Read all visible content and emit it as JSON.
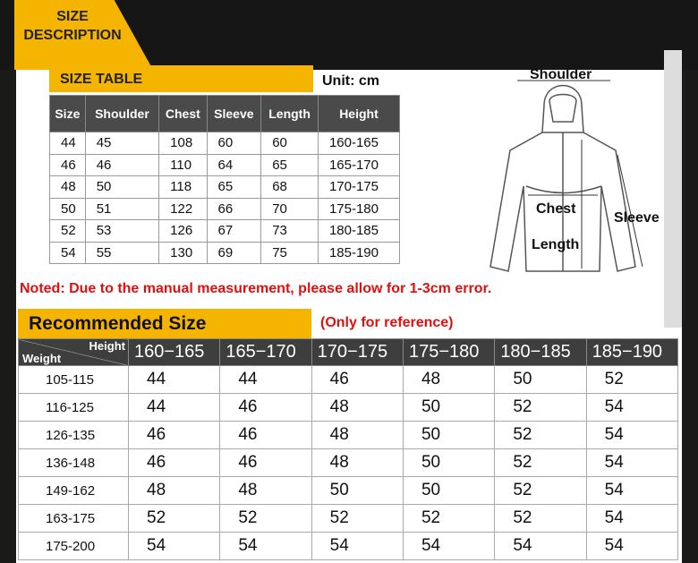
{
  "header": {
    "line1": "SIZE",
    "line2": "DESCRIPTION"
  },
  "size_table": {
    "title": "SIZE TABLE",
    "unit": "Unit: cm",
    "columns": [
      "Size",
      "Shoulder",
      "Chest",
      "Sleeve",
      "Length",
      "Height"
    ],
    "rows": [
      [
        "44",
        "45",
        "108",
        "60",
        "60",
        "160-165"
      ],
      [
        "46",
        "46",
        "110",
        "64",
        "65",
        "165-170"
      ],
      [
        "48",
        "50",
        "118",
        "65",
        "68",
        "170-175"
      ],
      [
        "50",
        "51",
        "122",
        "66",
        "70",
        "175-180"
      ],
      [
        "52",
        "53",
        "126",
        "67",
        "73",
        "180-185"
      ],
      [
        "54",
        "55",
        "130",
        "69",
        "75",
        "185-190"
      ]
    ]
  },
  "diagram": {
    "shoulder": "Shoulder",
    "chest": "Chest",
    "sleeve": "Sleeve",
    "length": "Length"
  },
  "note": "Noted: Due to the manual measurement, please allow for 1-3cm error.",
  "recommended": {
    "title": "Recommended Size",
    "reference": "(Only for reference)",
    "corner_height": "Height",
    "corner_weight": "Weight",
    "heights": [
      "160−165",
      "165−170",
      "170−175",
      "175−180",
      "180−185",
      "185−190"
    ],
    "rows": [
      {
        "weight": "105-115",
        "sizes": [
          "44",
          "44",
          "46",
          "48",
          "50",
          "52"
        ]
      },
      {
        "weight": "116-125",
        "sizes": [
          "44",
          "46",
          "48",
          "50",
          "52",
          "54"
        ]
      },
      {
        "weight": "126-135",
        "sizes": [
          "46",
          "46",
          "48",
          "50",
          "52",
          "54"
        ]
      },
      {
        "weight": "136-148",
        "sizes": [
          "46",
          "46",
          "48",
          "50",
          "52",
          "54"
        ]
      },
      {
        "weight": "149-162",
        "sizes": [
          "48",
          "48",
          "50",
          "50",
          "52",
          "54"
        ]
      },
      {
        "weight": "163-175",
        "sizes": [
          "52",
          "52",
          "52",
          "52",
          "52",
          "54"
        ]
      },
      {
        "weight": "175-200",
        "sizes": [
          "54",
          "54",
          "54",
          "54",
          "54",
          "54"
        ]
      }
    ]
  },
  "colors": {
    "accent": "#f5b400",
    "note": "#e01010",
    "header_dark": "#3e3e3e"
  }
}
